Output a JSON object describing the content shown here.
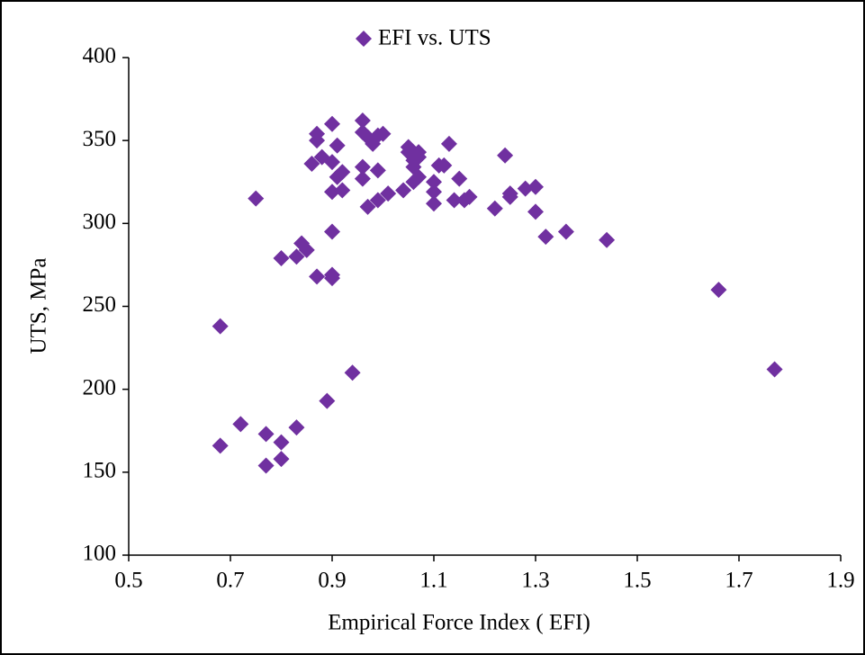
{
  "chart_data": {
    "type": "scatter",
    "xlabel": "Empirical Force Index ( EFI)",
    "ylabel": "UTS, MPa",
    "x": [
      0.68,
      0.68,
      0.72,
      0.75,
      0.77,
      0.77,
      0.8,
      0.8,
      0.8,
      0.83,
      0.83,
      0.84,
      0.85,
      0.86,
      0.87,
      0.87,
      0.87,
      0.88,
      0.89,
      0.9,
      0.9,
      0.9,
      0.9,
      0.9,
      0.91,
      0.91,
      0.9,
      0.92,
      0.92,
      0.94,
      0.96,
      0.96,
      0.96,
      0.96,
      0.97,
      0.97,
      0.98,
      0.99,
      0.99,
      0.99,
      1.0,
      1.01,
      1.04,
      1.05,
      1.05,
      1.06,
      1.06,
      1.07,
      1.06,
      1.07,
      1.07,
      1.1,
      1.1,
      1.1,
      1.11,
      1.12,
      1.13,
      1.14,
      1.15,
      1.16,
      1.17,
      1.22,
      1.24,
      1.25,
      1.25,
      1.28,
      1.3,
      1.3,
      1.32,
      1.36,
      1.44,
      1.66,
      1.77
    ],
    "series": [
      {
        "name": "EFI vs. UTS",
        "color": "#7030a0",
        "values": [
          166,
          238,
          179,
          315,
          173,
          154,
          279,
          168,
          158,
          280,
          177,
          288,
          284,
          336,
          354,
          350,
          268,
          340,
          193,
          337,
          269,
          360,
          295,
          267,
          328,
          347,
          319,
          331,
          320,
          210,
          327,
          355,
          362,
          334,
          352,
          310,
          348,
          314,
          353,
          332,
          354,
          318,
          320,
          343,
          346,
          338,
          334,
          343,
          325,
          340,
          328,
          319,
          325,
          312,
          335,
          335,
          348,
          314,
          327,
          314,
          316,
          309,
          341,
          316,
          318,
          321,
          322,
          307,
          292,
          295,
          290,
          260,
          212
        ]
      }
    ],
    "xlim": [
      0.5,
      1.9
    ],
    "xticks": [
      0.5,
      0.7,
      0.9,
      1.1,
      1.3,
      1.5,
      1.7,
      1.9
    ],
    "ylim": [
      100,
      400
    ],
    "yticks": [
      100,
      150,
      200,
      250,
      300,
      350,
      400
    ],
    "grid": false,
    "legend": "top"
  }
}
